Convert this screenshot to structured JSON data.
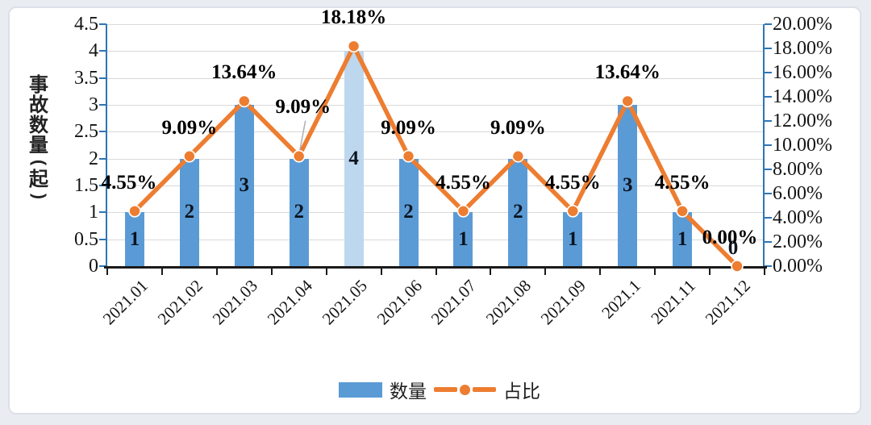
{
  "background": {
    "page_bg": "#e9ecf1",
    "card_bg": "#ffffff",
    "card_border": "#dce0e8"
  },
  "chart_data": {
    "type": "combo-bar-line",
    "categories": [
      "2021.01",
      "2021.02",
      "2021.03",
      "2021.04",
      "2021.05",
      "2021.06",
      "2021.07",
      "2021.08",
      "2021.09",
      "2021.1",
      "2021.11",
      "2021.12"
    ],
    "series": [
      {
        "name": "数量",
        "type": "bar",
        "axis": "left",
        "values": [
          1,
          2,
          3,
          2,
          4,
          2,
          1,
          2,
          1,
          3,
          1,
          0
        ],
        "data_labels": [
          "1",
          "2",
          "3",
          "2",
          "4",
          "2",
          "1",
          "2",
          "1",
          "3",
          "1",
          "0"
        ]
      },
      {
        "name": "占比",
        "type": "line",
        "axis": "right",
        "values_percent": [
          4.55,
          9.09,
          13.64,
          9.09,
          18.18,
          9.09,
          4.55,
          9.09,
          4.55,
          13.64,
          4.55,
          0
        ],
        "data_labels": [
          "4.55%",
          "9.09%",
          "13.64%",
          "9.09%",
          "18.18%",
          "9.09%",
          "4.55%",
          "9.09%",
          "4.55%",
          "13.64%",
          "4.55%",
          "0.00%"
        ]
      }
    ],
    "y_left": {
      "title": "事故数量(起)",
      "min": 0,
      "max": 4.5,
      "step": 0.5,
      "tick_labels": [
        "4.5",
        "4",
        "3.5",
        "3",
        "2.5",
        "2",
        "1.5",
        "1",
        "0.5",
        "0"
      ]
    },
    "y_right": {
      "min": 0,
      "max": 20,
      "step": 2,
      "tick_labels": [
        "20.00%",
        "18.00%",
        "16.00%",
        "14.00%",
        "12.00%",
        "10.00%",
        "8.00%",
        "6.00%",
        "4.00%",
        "2.00%",
        "0.00%"
      ]
    },
    "legend": {
      "position": "bottom",
      "items": [
        {
          "label": "数量",
          "type": "bar"
        },
        {
          "label": "占比",
          "type": "line"
        }
      ]
    },
    "grid": true,
    "colors": {
      "bar": "#5B9BD5",
      "bar_highlight": "#BDD7EE",
      "highlight_index": 4,
      "line": "#ED7D31",
      "marker": "#ED7D31",
      "value_axis": "#2E75B6",
      "category_axis": "#1a1a1a",
      "gridline": "#D9D9D9",
      "data_label_text": "#000000",
      "leader_line": "#aab0b8"
    }
  }
}
